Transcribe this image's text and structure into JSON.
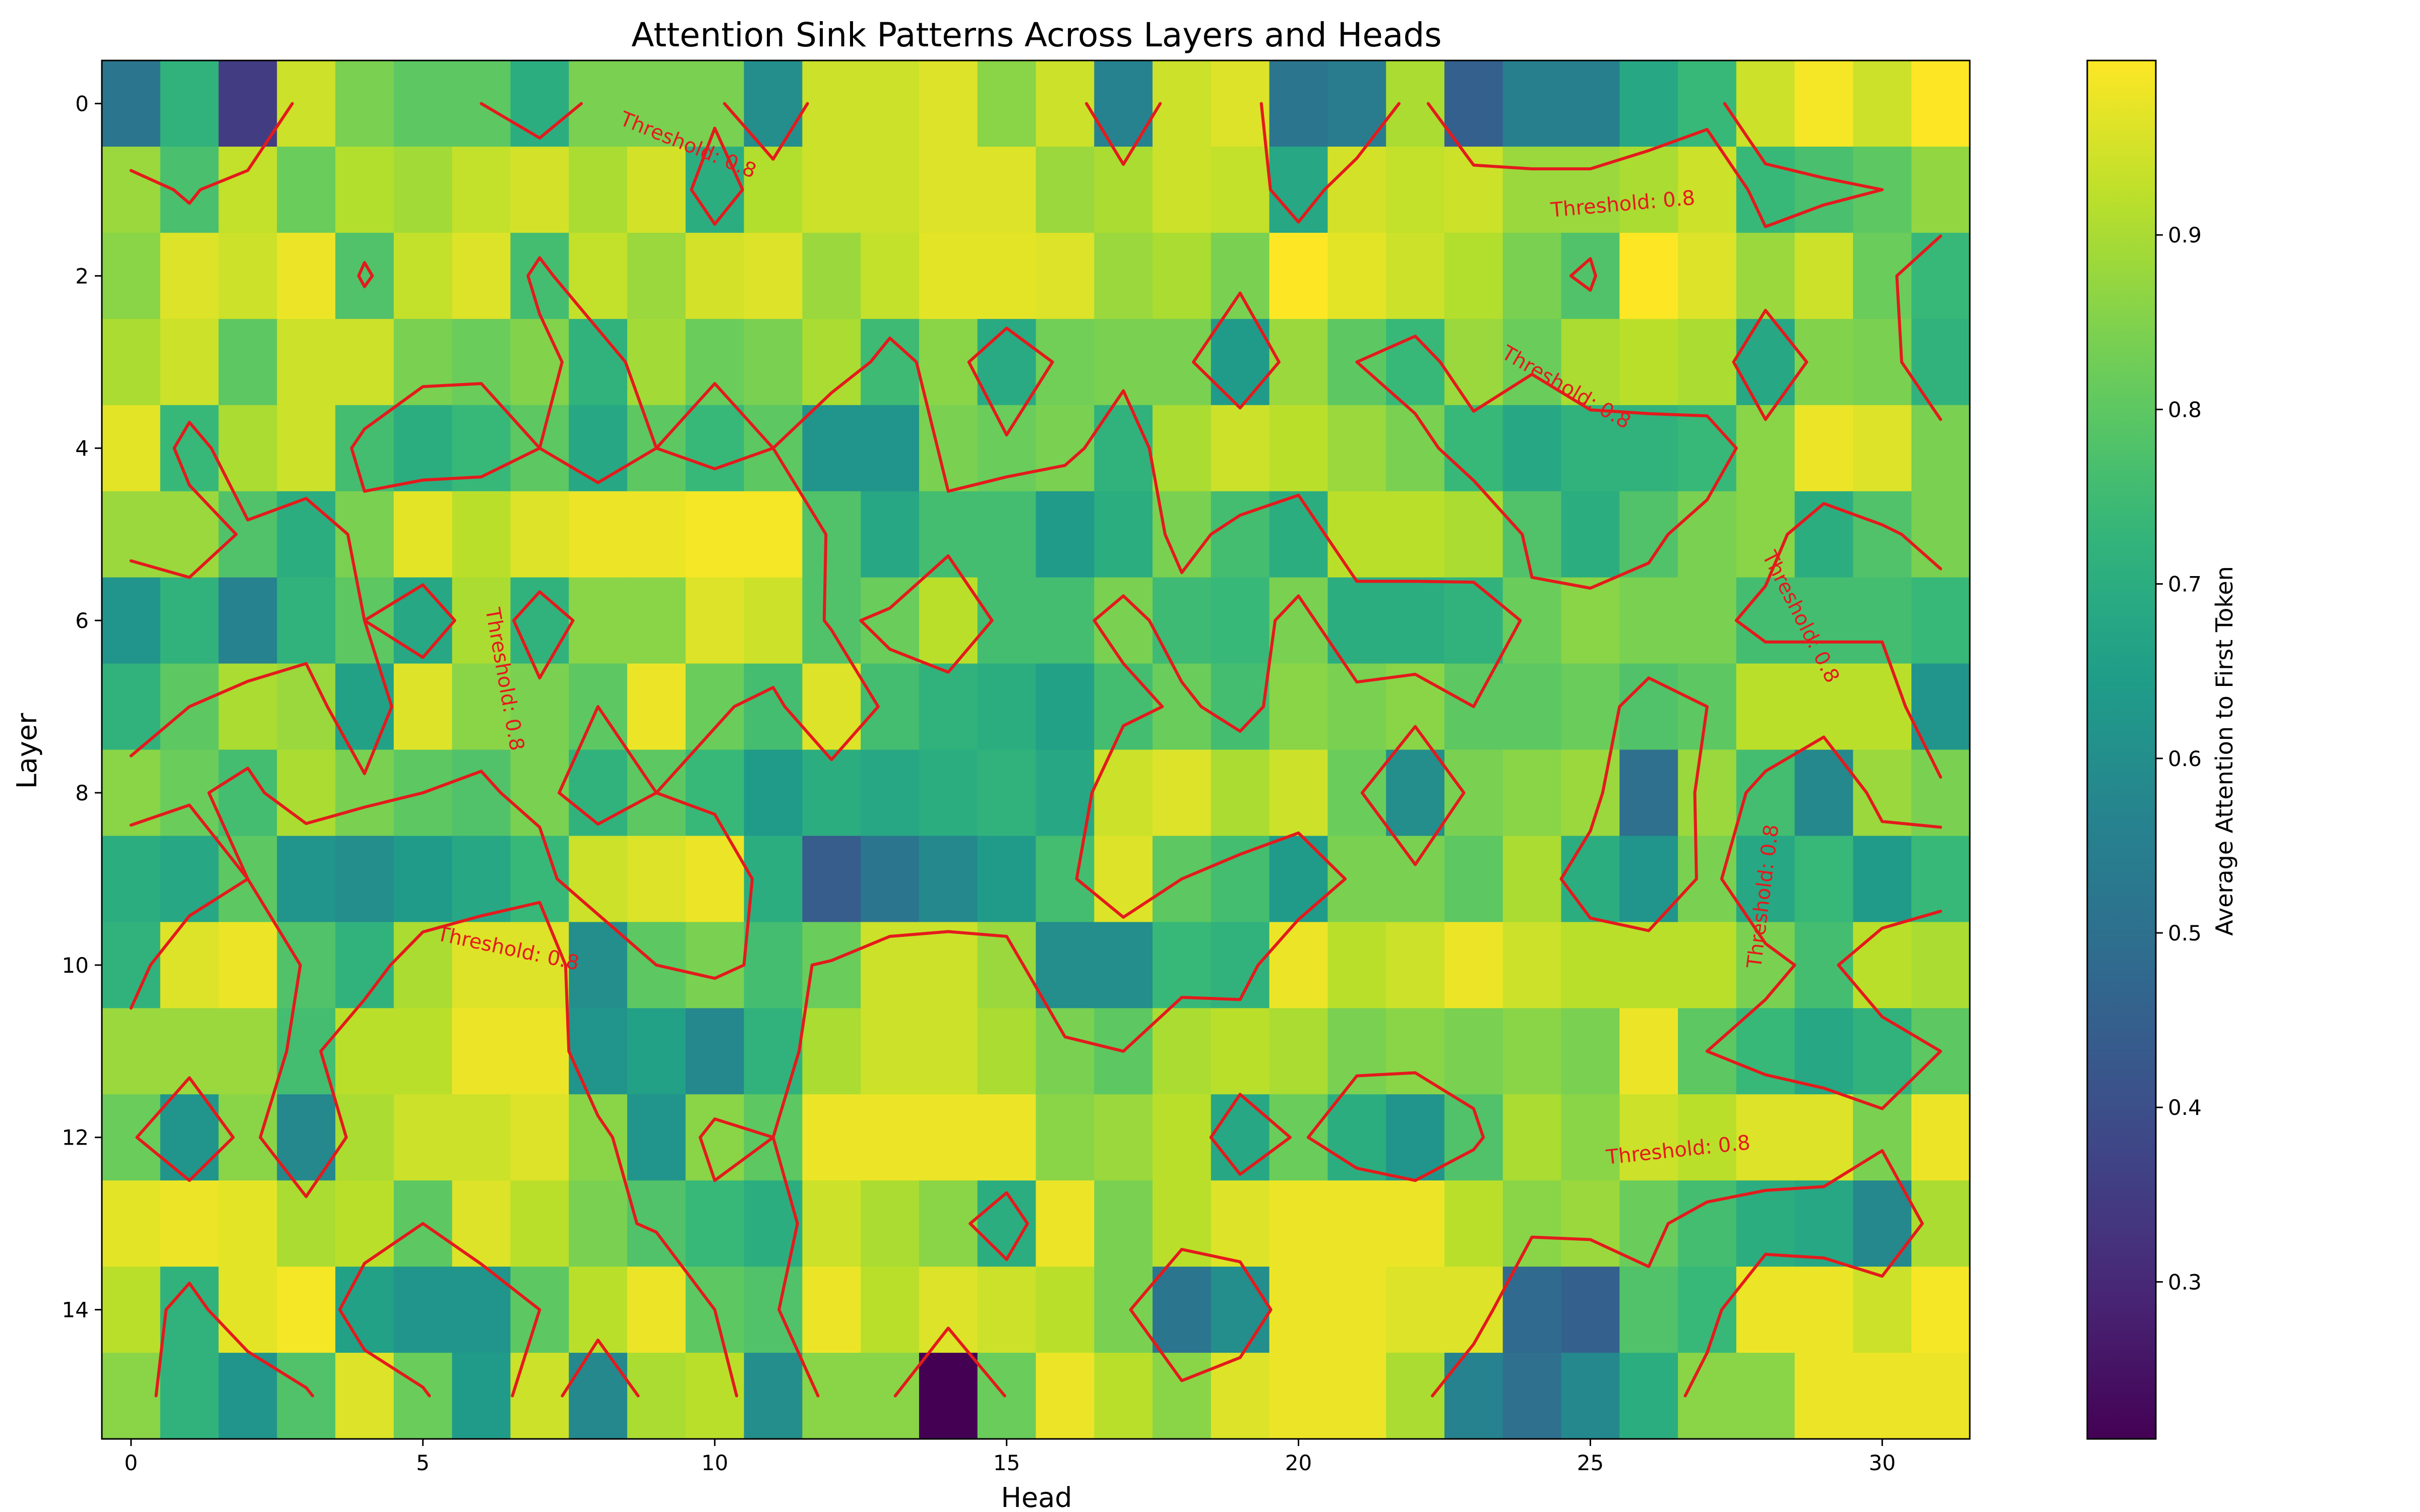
{
  "chart_data": {
    "type": "heatmap",
    "title": "Attention Sink Patterns Across Layers and Heads",
    "xlabel": "Head",
    "ylabel": "Layer",
    "colorbar_label": "Average Attention to First Token",
    "colormap": "viridis",
    "value_range": [
      0.21,
      1.0
    ],
    "x_ticks": [
      0,
      5,
      10,
      15,
      20,
      25,
      30
    ],
    "y_ticks": [
      0,
      2,
      4,
      6,
      8,
      10,
      12,
      14
    ],
    "colorbar_ticks": [
      0.3,
      0.4,
      0.5,
      0.6,
      0.7,
      0.8,
      0.9
    ],
    "n_heads": 32,
    "n_layers": 16,
    "contour_level": 0.8,
    "contour_color": "#e41a1c",
    "contour_labels": [
      "Threshold: 0.8",
      "Threshold: 0.8",
      "Threshold: 0.8",
      "Threshold: 0.8",
      "Threshold: 0.8",
      "Threshold: 0.8",
      "Threshold: 0.8",
      "Threshold: 0.8",
      "Threshold: 0.8"
    ],
    "grid": false,
    "values": [
      [
        0.52,
        0.72,
        0.35,
        0.94,
        0.84,
        0.8,
        0.8,
        0.7,
        0.84,
        0.84,
        0.84,
        0.6,
        0.94,
        0.94,
        0.96,
        0.86,
        0.94,
        0.56,
        0.94,
        0.96,
        0.52,
        0.54,
        0.9,
        0.45,
        0.55,
        0.55,
        0.68,
        0.74,
        0.94,
        0.99,
        0.94,
        1.0
      ],
      [
        0.88,
        0.77,
        0.93,
        0.82,
        0.91,
        0.89,
        0.93,
        0.95,
        0.9,
        0.95,
        0.7,
        0.91,
        0.94,
        0.94,
        0.96,
        0.96,
        0.88,
        0.9,
        0.94,
        0.93,
        0.68,
        0.95,
        0.93,
        0.94,
        0.88,
        0.88,
        0.9,
        0.94,
        0.74,
        0.77,
        0.8,
        0.87
      ],
      [
        0.86,
        0.96,
        0.94,
        0.98,
        0.78,
        0.93,
        0.96,
        0.76,
        0.93,
        0.88,
        0.95,
        0.96,
        0.88,
        0.93,
        0.97,
        0.97,
        0.96,
        0.88,
        0.9,
        0.84,
        1.0,
        0.97,
        0.94,
        0.91,
        0.84,
        0.78,
        1.0,
        0.96,
        0.88,
        0.94,
        0.82,
        0.74
      ],
      [
        0.9,
        0.94,
        0.8,
        0.94,
        0.94,
        0.84,
        0.82,
        0.85,
        0.72,
        0.89,
        0.82,
        0.84,
        0.9,
        0.75,
        0.86,
        0.69,
        0.83,
        0.84,
        0.84,
        0.64,
        0.88,
        0.8,
        0.74,
        0.88,
        0.82,
        0.9,
        0.92,
        0.9,
        0.68,
        0.85,
        0.84,
        0.72
      ],
      [
        0.97,
        0.74,
        0.9,
        0.94,
        0.76,
        0.7,
        0.74,
        0.8,
        0.68,
        0.8,
        0.74,
        0.8,
        0.62,
        0.62,
        0.84,
        0.82,
        0.84,
        0.72,
        0.9,
        0.94,
        0.92,
        0.88,
        0.84,
        0.74,
        0.68,
        0.72,
        0.72,
        0.74,
        0.86,
        0.98,
        0.96,
        0.84
      ],
      [
        0.88,
        0.88,
        0.78,
        0.7,
        0.84,
        0.97,
        0.92,
        0.96,
        0.98,
        0.98,
        0.99,
        0.99,
        0.78,
        0.68,
        0.76,
        0.76,
        0.64,
        0.7,
        0.84,
        0.76,
        0.7,
        0.92,
        0.92,
        0.9,
        0.78,
        0.7,
        0.78,
        0.84,
        0.86,
        0.7,
        0.78,
        0.84
      ],
      [
        0.62,
        0.72,
        0.56,
        0.72,
        0.8,
        0.68,
        0.9,
        0.72,
        0.86,
        0.86,
        0.96,
        0.94,
        0.78,
        0.82,
        0.92,
        0.76,
        0.76,
        0.84,
        0.75,
        0.74,
        0.84,
        0.7,
        0.7,
        0.72,
        0.82,
        0.86,
        0.84,
        0.84,
        0.76,
        0.76,
        0.76,
        0.74
      ],
      [
        0.72,
        0.8,
        0.9,
        0.88,
        0.66,
        0.96,
        0.86,
        0.84,
        0.8,
        0.98,
        0.82,
        0.76,
        0.96,
        0.76,
        0.72,
        0.7,
        0.66,
        0.76,
        0.82,
        0.76,
        0.86,
        0.84,
        0.86,
        0.8,
        0.8,
        0.82,
        0.78,
        0.8,
        0.92,
        0.92,
        0.92,
        0.62
      ],
      [
        0.86,
        0.82,
        0.76,
        0.9,
        0.84,
        0.8,
        0.78,
        0.84,
        0.72,
        0.8,
        0.74,
        0.64,
        0.7,
        0.68,
        0.7,
        0.72,
        0.68,
        0.94,
        0.96,
        0.9,
        0.94,
        0.82,
        0.6,
        0.84,
        0.86,
        0.88,
        0.5,
        0.88,
        0.76,
        0.58,
        0.88,
        0.84
      ],
      [
        0.7,
        0.68,
        0.8,
        0.62,
        0.6,
        0.64,
        0.68,
        0.74,
        0.94,
        0.96,
        0.98,
        0.7,
        0.44,
        0.52,
        0.58,
        0.64,
        0.76,
        0.96,
        0.8,
        0.76,
        0.64,
        0.84,
        0.84,
        0.8,
        0.9,
        0.7,
        0.62,
        0.84,
        0.68,
        0.74,
        0.64,
        0.74
      ],
      [
        0.72,
        0.96,
        0.98,
        0.78,
        0.72,
        0.9,
        0.96,
        0.96,
        0.6,
        0.8,
        0.84,
        0.76,
        0.82,
        0.94,
        0.94,
        0.88,
        0.6,
        0.6,
        0.74,
        0.72,
        0.98,
        0.92,
        0.94,
        0.98,
        0.94,
        0.92,
        0.92,
        0.92,
        0.84,
        0.76,
        0.92,
        0.9
      ],
      [
        0.88,
        0.88,
        0.88,
        0.76,
        0.92,
        0.92,
        0.98,
        0.98,
        0.62,
        0.66,
        0.58,
        0.72,
        0.9,
        0.94,
        0.94,
        0.9,
        0.84,
        0.8,
        0.9,
        0.92,
        0.9,
        0.84,
        0.86,
        0.84,
        0.86,
        0.84,
        0.98,
        0.8,
        0.74,
        0.68,
        0.72,
        0.8
      ],
      [
        0.82,
        0.62,
        0.86,
        0.58,
        0.9,
        0.94,
        0.94,
        0.96,
        0.86,
        0.62,
        0.86,
        0.8,
        0.98,
        0.98,
        0.98,
        0.98,
        0.86,
        0.88,
        0.92,
        0.68,
        0.82,
        0.7,
        0.62,
        0.78,
        0.9,
        0.86,
        0.94,
        0.92,
        0.96,
        0.96,
        0.84,
        0.98
      ],
      [
        0.97,
        0.98,
        0.97,
        0.9,
        0.92,
        0.8,
        0.96,
        0.92,
        0.84,
        0.78,
        0.74,
        0.7,
        0.94,
        0.9,
        0.86,
        0.7,
        0.98,
        0.84,
        0.92,
        0.96,
        0.98,
        0.98,
        0.98,
        0.92,
        0.86,
        0.88,
        0.82,
        0.76,
        0.7,
        0.68,
        0.58,
        0.9
      ],
      [
        0.92,
        0.72,
        0.97,
        0.99,
        0.66,
        0.62,
        0.62,
        0.8,
        0.92,
        0.98,
        0.8,
        0.78,
        0.98,
        0.92,
        0.96,
        0.94,
        0.92,
        0.84,
        0.52,
        0.6,
        0.98,
        0.98,
        0.96,
        0.96,
        0.48,
        0.45,
        0.78,
        0.74,
        0.98,
        0.98,
        0.94,
        0.99
      ],
      [
        0.86,
        0.72,
        0.62,
        0.78,
        0.96,
        0.82,
        0.64,
        0.94,
        0.58,
        0.9,
        0.92,
        0.6,
        0.86,
        0.86,
        0.21,
        0.82,
        0.98,
        0.92,
        0.86,
        0.96,
        0.98,
        0.98,
        0.9,
        0.56,
        0.5,
        0.58,
        0.7,
        0.86,
        0.86,
        0.98,
        0.98,
        0.98
      ]
    ]
  }
}
